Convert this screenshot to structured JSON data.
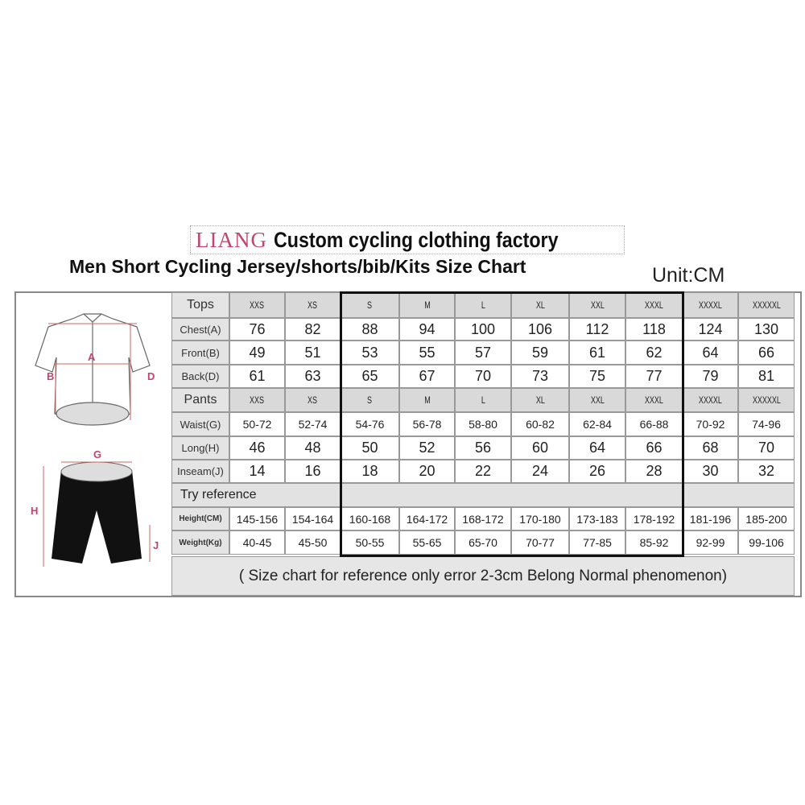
{
  "header": {
    "brand": "LIANG",
    "tagline": "Custom cycling clothing factory",
    "subtitle": "Men Short Cycling Jersey/shorts/bib/Kits Size Chart",
    "unit": "Unit:CM",
    "brand_color": "#c2456b"
  },
  "illustration": {
    "jersey_labels": [
      "A",
      "B",
      "D"
    ],
    "shorts_labels": [
      "G",
      "H",
      "J"
    ]
  },
  "table": {
    "sizes": [
      "XXS",
      "XS",
      "S",
      "M",
      "L",
      "XL",
      "XXL",
      "XXXL",
      "XXXXL",
      "XXXXXL"
    ],
    "tops_label": "Tops",
    "pants_label": "Pants",
    "tops_rows": [
      {
        "label": "Chest(A)",
        "values": [
          "76",
          "82",
          "88",
          "94",
          "100",
          "106",
          "112",
          "118",
          "124",
          "130"
        ]
      },
      {
        "label": "Front(B)",
        "values": [
          "49",
          "51",
          "53",
          "55",
          "57",
          "59",
          "61",
          "62",
          "64",
          "66"
        ]
      },
      {
        "label": "Back(D)",
        "values": [
          "61",
          "63",
          "65",
          "67",
          "70",
          "73",
          "75",
          "77",
          "79",
          "81"
        ]
      }
    ],
    "pants_rows": [
      {
        "label": "Waist(G)",
        "values": [
          "50-72",
          "52-74",
          "54-76",
          "56-78",
          "58-80",
          "60-82",
          "62-84",
          "66-88",
          "70-92",
          "74-96"
        ]
      },
      {
        "label": "Long(H)",
        "values": [
          "46",
          "48",
          "50",
          "52",
          "56",
          "60",
          "64",
          "66",
          "68",
          "70"
        ]
      },
      {
        "label": "Inseam(J)",
        "values": [
          "14",
          "16",
          "18",
          "20",
          "22",
          "24",
          "26",
          "28",
          "30",
          "32"
        ]
      }
    ],
    "try_reference_label": "Try reference",
    "reference_rows": [
      {
        "label": "Height(CM)",
        "values": [
          "145-156",
          "154-164",
          "160-168",
          "164-172",
          "168-172",
          "170-180",
          "173-183",
          "178-192",
          "181-196",
          "185-200"
        ]
      },
      {
        "label": "Weight(Kg)",
        "values": [
          "40-45",
          "45-50",
          "50-55",
          "55-65",
          "65-70",
          "70-77",
          "77-85",
          "85-92",
          "92-99",
          "99-106"
        ]
      }
    ],
    "highlighted_sizes": [
      "S",
      "M",
      "L",
      "XL",
      "XXL",
      "XXXL"
    ],
    "footnote": "( Size chart for reference only  error 2-3cm  Belong Normal phenomenon)"
  }
}
